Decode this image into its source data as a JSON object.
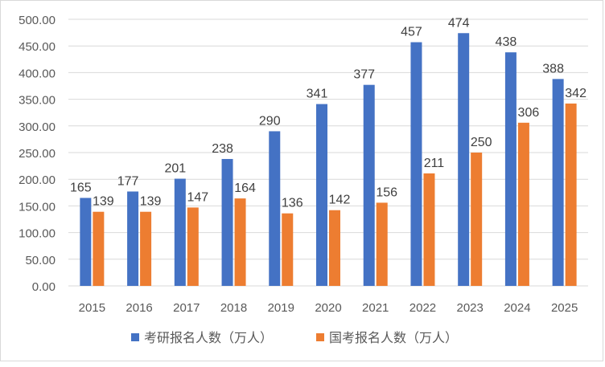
{
  "chart_data": {
    "type": "bar",
    "title": "",
    "xlabel": "",
    "ylabel": "",
    "categories": [
      "2015",
      "2016",
      "2017",
      "2018",
      "2019",
      "2020",
      "2021",
      "2022",
      "2023",
      "2024",
      "2025"
    ],
    "series": [
      {
        "name": "考研报名人数（万人）",
        "color": "#4472C4",
        "values": [
          165,
          177,
          201,
          238,
          290,
          341,
          377,
          457,
          474,
          438,
          388
        ]
      },
      {
        "name": "国考报名人数（万人）",
        "color": "#ED7D31",
        "values": [
          139,
          139,
          147,
          164,
          136,
          142,
          156,
          211,
          250,
          306,
          342
        ]
      }
    ],
    "ylim": [
      0,
      500
    ],
    "yticks": [
      "0.00",
      "50.00",
      "100.00",
      "150.00",
      "200.00",
      "250.00",
      "300.00",
      "350.00",
      "400.00",
      "450.00",
      "500.00"
    ],
    "grid": true,
    "legend": "bottom",
    "data_labels": true
  }
}
